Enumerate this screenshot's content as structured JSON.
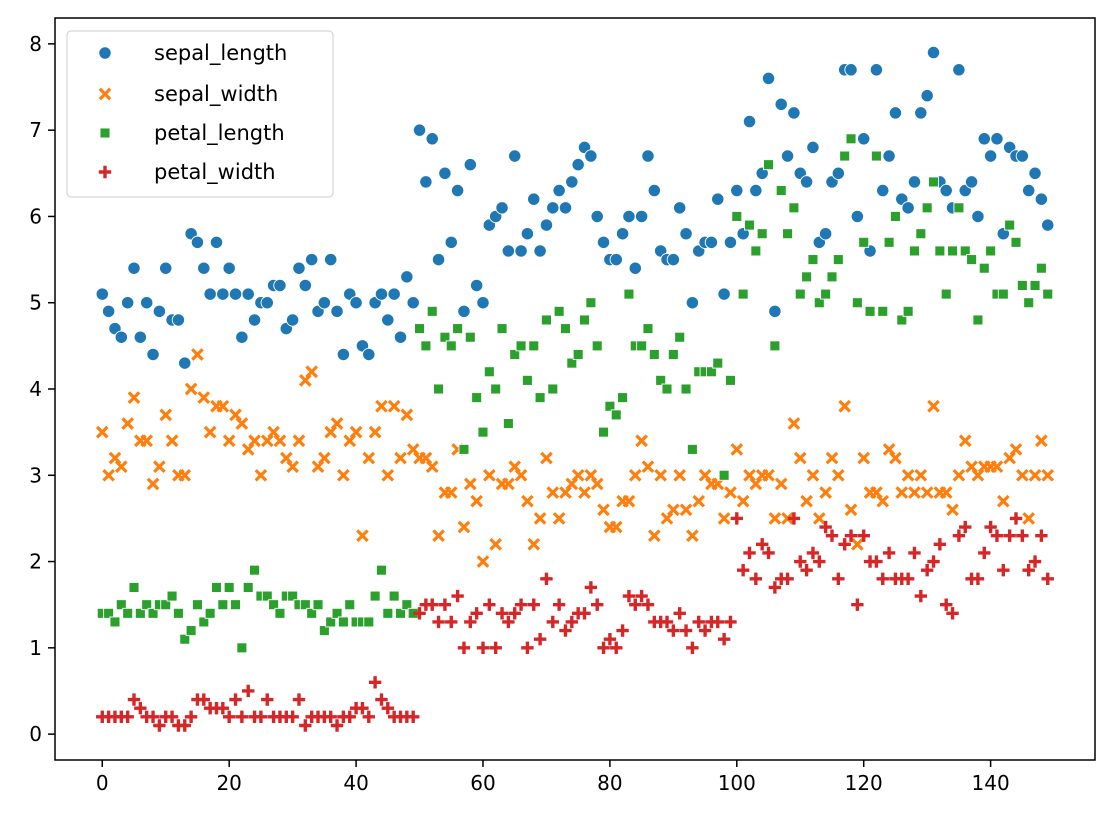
{
  "chart_data": {
    "type": "scatter",
    "title": "",
    "xlabel": "",
    "ylabel": "",
    "xlim": [
      -7.45,
      156.45
    ],
    "ylim": [
      -0.3,
      8.3
    ],
    "xticks": [
      0,
      20,
      40,
      60,
      80,
      100,
      120,
      140
    ],
    "yticks": [
      0,
      1,
      2,
      3,
      4,
      5,
      6,
      7,
      8
    ],
    "grid": false,
    "legend_position": "top-left",
    "x": [
      0,
      1,
      2,
      3,
      4,
      5,
      6,
      7,
      8,
      9,
      10,
      11,
      12,
      13,
      14,
      15,
      16,
      17,
      18,
      19,
      20,
      21,
      22,
      23,
      24,
      25,
      26,
      27,
      28,
      29,
      30,
      31,
      32,
      33,
      34,
      35,
      36,
      37,
      38,
      39,
      40,
      41,
      42,
      43,
      44,
      45,
      46,
      47,
      48,
      49,
      50,
      51,
      52,
      53,
      54,
      55,
      56,
      57,
      58,
      59,
      60,
      61,
      62,
      63,
      64,
      65,
      66,
      67,
      68,
      69,
      70,
      71,
      72,
      73,
      74,
      75,
      76,
      77,
      78,
      79,
      80,
      81,
      82,
      83,
      84,
      85,
      86,
      87,
      88,
      89,
      90,
      91,
      92,
      93,
      94,
      95,
      96,
      97,
      98,
      99,
      100,
      101,
      102,
      103,
      104,
      105,
      106,
      107,
      108,
      109,
      110,
      111,
      112,
      113,
      114,
      115,
      116,
      117,
      118,
      119,
      120,
      121,
      122,
      123,
      124,
      125,
      126,
      127,
      128,
      129,
      130,
      131,
      132,
      133,
      134,
      135,
      136,
      137,
      138,
      139,
      140,
      141,
      142,
      143,
      144,
      145,
      146,
      147,
      148,
      149
    ],
    "series": [
      {
        "name": "sepal_length",
        "color": "#1f77b4",
        "marker": "circle",
        "values": [
          5.1,
          4.9,
          4.7,
          4.6,
          5.0,
          5.4,
          4.6,
          5.0,
          4.4,
          4.9,
          5.4,
          4.8,
          4.8,
          4.3,
          5.8,
          5.7,
          5.4,
          5.1,
          5.7,
          5.1,
          5.4,
          5.1,
          4.6,
          5.1,
          4.8,
          5.0,
          5.0,
          5.2,
          5.2,
          4.7,
          4.8,
          5.4,
          5.2,
          5.5,
          4.9,
          5.0,
          5.5,
          4.9,
          4.4,
          5.1,
          5.0,
          4.5,
          4.4,
          5.0,
          5.1,
          4.8,
          5.1,
          4.6,
          5.3,
          5.0,
          7.0,
          6.4,
          6.9,
          5.5,
          6.5,
          5.7,
          6.3,
          4.9,
          6.6,
          5.2,
          5.0,
          5.9,
          6.0,
          6.1,
          5.6,
          6.7,
          5.6,
          5.8,
          6.2,
          5.6,
          5.9,
          6.1,
          6.3,
          6.1,
          6.4,
          6.6,
          6.8,
          6.7,
          6.0,
          5.7,
          5.5,
          5.5,
          5.8,
          6.0,
          5.4,
          6.0,
          6.7,
          6.3,
          5.6,
          5.5,
          5.5,
          6.1,
          5.8,
          5.0,
          5.6,
          5.7,
          5.7,
          6.2,
          5.1,
          5.7,
          6.3,
          5.8,
          7.1,
          6.3,
          6.5,
          7.6,
          4.9,
          7.3,
          6.7,
          7.2,
          6.5,
          6.4,
          6.8,
          5.7,
          5.8,
          6.4,
          6.5,
          7.7,
          7.7,
          6.0,
          6.9,
          5.6,
          7.7,
          6.3,
          6.7,
          7.2,
          6.2,
          6.1,
          6.4,
          7.2,
          7.4,
          7.9,
          6.4,
          6.3,
          6.1,
          7.7,
          6.3,
          6.4,
          6.0,
          6.9,
          6.7,
          6.9,
          5.8,
          6.8,
          6.7,
          6.7,
          6.3,
          6.5,
          6.2,
          5.9
        ]
      },
      {
        "name": "sepal_width",
        "color": "#ff7f0e",
        "marker": "x",
        "values": [
          3.5,
          3.0,
          3.2,
          3.1,
          3.6,
          3.9,
          3.4,
          3.4,
          2.9,
          3.1,
          3.7,
          3.4,
          3.0,
          3.0,
          4.0,
          4.4,
          3.9,
          3.5,
          3.8,
          3.8,
          3.4,
          3.7,
          3.6,
          3.3,
          3.4,
          3.0,
          3.4,
          3.5,
          3.4,
          3.2,
          3.1,
          3.4,
          4.1,
          4.2,
          3.1,
          3.2,
          3.5,
          3.6,
          3.0,
          3.4,
          3.5,
          2.3,
          3.2,
          3.5,
          3.8,
          3.0,
          3.8,
          3.2,
          3.7,
          3.3,
          3.2,
          3.2,
          3.1,
          2.3,
          2.8,
          2.8,
          3.3,
          2.4,
          2.9,
          2.7,
          2.0,
          3.0,
          2.2,
          2.9,
          2.9,
          3.1,
          3.0,
          2.7,
          2.2,
          2.5,
          3.2,
          2.8,
          2.5,
          2.8,
          2.9,
          3.0,
          2.8,
          3.0,
          2.9,
          2.6,
          2.4,
          2.4,
          2.7,
          2.7,
          3.0,
          3.4,
          3.1,
          2.3,
          3.0,
          2.5,
          2.6,
          3.0,
          2.6,
          2.3,
          2.7,
          3.0,
          2.9,
          2.9,
          2.5,
          2.8,
          3.3,
          2.7,
          3.0,
          2.9,
          3.0,
          3.0,
          2.5,
          2.9,
          2.5,
          3.6,
          3.2,
          2.7,
          3.0,
          2.5,
          2.8,
          3.2,
          3.0,
          3.8,
          2.6,
          2.2,
          3.2,
          2.8,
          2.8,
          2.7,
          3.3,
          3.2,
          2.8,
          3.0,
          2.8,
          3.0,
          2.8,
          3.8,
          2.8,
          2.8,
          2.6,
          3.0,
          3.4,
          3.1,
          3.0,
          3.1,
          3.1,
          3.1,
          2.7,
          3.2,
          3.3,
          3.0,
          2.5,
          3.0,
          3.4,
          3.0
        ]
      },
      {
        "name": "petal_length",
        "color": "#2ca02c",
        "marker": "square",
        "values": [
          1.4,
          1.4,
          1.3,
          1.5,
          1.4,
          1.7,
          1.4,
          1.5,
          1.4,
          1.5,
          1.5,
          1.6,
          1.4,
          1.1,
          1.2,
          1.5,
          1.3,
          1.4,
          1.7,
          1.5,
          1.7,
          1.5,
          1.0,
          1.7,
          1.9,
          1.6,
          1.6,
          1.5,
          1.4,
          1.6,
          1.6,
          1.5,
          1.5,
          1.4,
          1.5,
          1.2,
          1.3,
          1.4,
          1.3,
          1.5,
          1.3,
          1.3,
          1.3,
          1.6,
          1.9,
          1.4,
          1.6,
          1.4,
          1.5,
          1.4,
          4.7,
          4.5,
          4.9,
          4.0,
          4.6,
          4.5,
          4.7,
          3.3,
          4.6,
          3.9,
          3.5,
          4.2,
          4.0,
          4.7,
          3.6,
          4.4,
          4.5,
          4.1,
          4.5,
          3.9,
          4.8,
          4.0,
          4.9,
          4.7,
          4.3,
          4.4,
          4.8,
          5.0,
          4.5,
          3.5,
          3.8,
          3.7,
          3.9,
          5.1,
          4.5,
          4.5,
          4.7,
          4.4,
          4.1,
          4.0,
          4.4,
          4.6,
          4.0,
          3.3,
          4.2,
          4.2,
          4.2,
          4.3,
          3.0,
          4.1,
          6.0,
          5.1,
          5.9,
          5.6,
          5.8,
          6.6,
          4.5,
          6.3,
          5.8,
          6.1,
          5.1,
          5.3,
          5.5,
          5.0,
          5.1,
          5.3,
          5.5,
          6.7,
          6.9,
          5.0,
          5.7,
          4.9,
          6.7,
          4.9,
          5.7,
          6.0,
          4.8,
          4.9,
          5.6,
          5.8,
          6.1,
          6.4,
          5.6,
          5.1,
          5.6,
          6.1,
          5.6,
          5.5,
          4.8,
          5.4,
          5.6,
          5.1,
          5.1,
          5.9,
          5.7,
          5.2,
          5.0,
          5.2,
          5.4,
          5.1
        ]
      },
      {
        "name": "petal_width",
        "color": "#d62728",
        "marker": "plus",
        "values": [
          0.2,
          0.2,
          0.2,
          0.2,
          0.2,
          0.4,
          0.3,
          0.2,
          0.2,
          0.1,
          0.2,
          0.2,
          0.1,
          0.1,
          0.2,
          0.4,
          0.4,
          0.3,
          0.3,
          0.3,
          0.2,
          0.4,
          0.2,
          0.5,
          0.2,
          0.2,
          0.4,
          0.2,
          0.2,
          0.2,
          0.2,
          0.4,
          0.1,
          0.2,
          0.2,
          0.2,
          0.2,
          0.1,
          0.2,
          0.2,
          0.3,
          0.3,
          0.2,
          0.6,
          0.4,
          0.3,
          0.2,
          0.2,
          0.2,
          0.2,
          1.4,
          1.5,
          1.5,
          1.3,
          1.5,
          1.3,
          1.6,
          1.0,
          1.3,
          1.4,
          1.0,
          1.5,
          1.0,
          1.4,
          1.3,
          1.4,
          1.5,
          1.0,
          1.5,
          1.1,
          1.8,
          1.3,
          1.5,
          1.2,
          1.3,
          1.4,
          1.4,
          1.7,
          1.5,
          1.0,
          1.1,
          1.0,
          1.2,
          1.6,
          1.5,
          1.6,
          1.5,
          1.3,
          1.3,
          1.3,
          1.2,
          1.4,
          1.2,
          1.0,
          1.3,
          1.2,
          1.3,
          1.3,
          1.1,
          1.3,
          2.5,
          1.9,
          2.1,
          1.8,
          2.2,
          2.1,
          1.7,
          1.8,
          1.8,
          2.5,
          2.0,
          1.9,
          2.1,
          2.0,
          2.4,
          2.3,
          1.8,
          2.2,
          2.3,
          1.5,
          2.3,
          2.0,
          2.0,
          1.8,
          2.1,
          1.8,
          1.8,
          1.8,
          2.1,
          1.6,
          1.9,
          2.0,
          2.2,
          1.5,
          1.4,
          2.3,
          2.4,
          1.8,
          1.8,
          2.1,
          2.4,
          2.3,
          1.9,
          2.3,
          2.5,
          2.3,
          1.9,
          2.0,
          2.3,
          1.8
        ]
      }
    ]
  }
}
